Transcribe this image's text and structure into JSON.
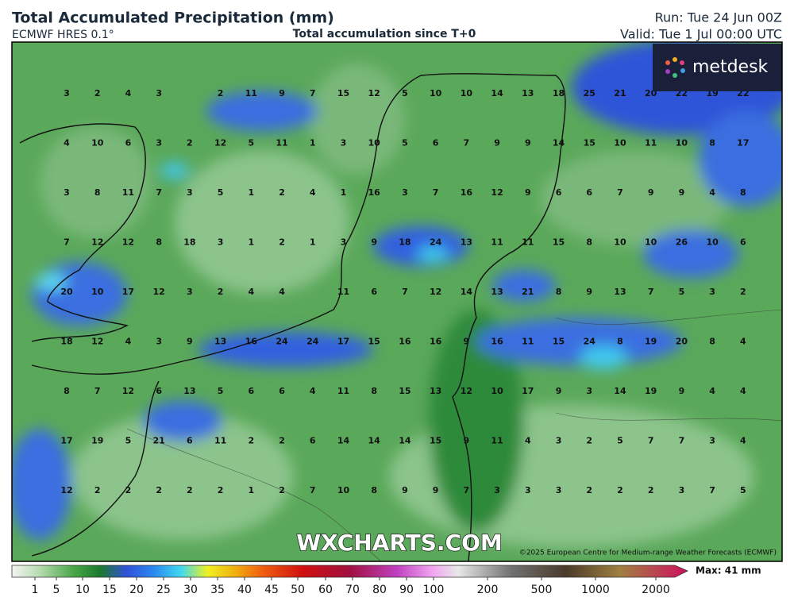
{
  "header": {
    "title": "Total Accumulated Precipitation (mm)",
    "model": "ECMWF HRES 0.1°",
    "subtitle": "Total accumulation since T+0",
    "run": "Run: Tue 24 Jun 00Z",
    "valid": "Valid: Tue 1 Jul 00:00 UTC"
  },
  "logo": "metdesk",
  "watermark": "WXCHARTS.COM",
  "copyright": "©2025 European Centre for Medium-range Weather Forecasts (ECMWF)",
  "grid": {
    "rows": [
      [
        3,
        2,
        4,
        3,
        null,
        2,
        11,
        9,
        7,
        15,
        12,
        5,
        10,
        10,
        14,
        13,
        18,
        25,
        21,
        20,
        22,
        19,
        22
      ],
      [
        4,
        10,
        6,
        3,
        2,
        12,
        5,
        11,
        1,
        3,
        10,
        5,
        6,
        7,
        9,
        9,
        14,
        15,
        10,
        11,
        10,
        8,
        17
      ],
      [
        3,
        8,
        11,
        7,
        3,
        5,
        1,
        2,
        4,
        1,
        16,
        3,
        7,
        16,
        12,
        9,
        6,
        6,
        7,
        9,
        9,
        4,
        8
      ],
      [
        7,
        12,
        12,
        8,
        18,
        3,
        1,
        2,
        1,
        3,
        9,
        18,
        24,
        13,
        11,
        11,
        15,
        8,
        10,
        10,
        26,
        10,
        6
      ],
      [
        20,
        10,
        17,
        12,
        3,
        2,
        4,
        4,
        null,
        11,
        6,
        7,
        12,
        14,
        13,
        21,
        8,
        9,
        13,
        7,
        5,
        3,
        2
      ],
      [
        18,
        12,
        4,
        3,
        9,
        13,
        16,
        24,
        24,
        17,
        15,
        16,
        16,
        9,
        16,
        11,
        15,
        24,
        8,
        19,
        20,
        8,
        4
      ],
      [
        8,
        7,
        12,
        6,
        13,
        5,
        6,
        6,
        4,
        11,
        8,
        15,
        13,
        12,
        10,
        17,
        9,
        3,
        14,
        19,
        9,
        4,
        4
      ],
      [
        17,
        19,
        5,
        21,
        6,
        11,
        2,
        2,
        6,
        14,
        14,
        14,
        15,
        9,
        11,
        4,
        3,
        2,
        5,
        7,
        7,
        3,
        4
      ],
      [
        12,
        2,
        2,
        2,
        2,
        2,
        1,
        2,
        7,
        10,
        8,
        9,
        9,
        7,
        3,
        3,
        3,
        2,
        2,
        2,
        3,
        7,
        5
      ]
    ]
  },
  "legend": {
    "ticks": [
      1,
      5,
      10,
      15,
      20,
      25,
      30,
      35,
      40,
      45,
      50,
      60,
      70,
      80,
      90,
      100,
      200,
      500,
      1000,
      2000
    ],
    "max": "Max: 41 mm"
  }
}
